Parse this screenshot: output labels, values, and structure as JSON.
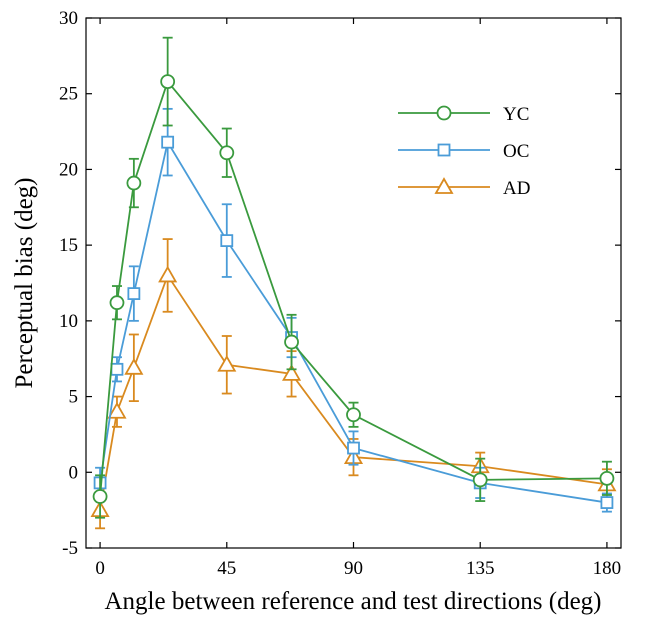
{
  "chart_data": {
    "type": "line",
    "xlabel": "Angle between reference and test directions (deg)",
    "ylabel": "Perceptual bias (deg)",
    "xlim": [
      -5,
      185
    ],
    "ylim": [
      -5,
      30
    ],
    "xticks": [
      0,
      45,
      90,
      135,
      180
    ],
    "yticks": [
      -5,
      0,
      5,
      10,
      15,
      20,
      25,
      30
    ],
    "grid": false,
    "legend_position": "top-right",
    "x": [
      0,
      6,
      12,
      24,
      45,
      68,
      90,
      135,
      180
    ],
    "series": [
      {
        "name": "YC",
        "color": "#3a9a3e",
        "marker": "circle",
        "values": [
          -1.6,
          11.2,
          19.1,
          25.8,
          21.1,
          8.6,
          3.8,
          -0.5,
          -0.4
        ],
        "errors": [
          1.4,
          1.1,
          1.6,
          2.9,
          1.6,
          1.8,
          0.8,
          1.4,
          1.1
        ]
      },
      {
        "name": "OC",
        "color": "#4a9cd8",
        "marker": "square",
        "values": [
          -0.7,
          6.8,
          11.8,
          21.8,
          15.3,
          8.9,
          1.6,
          -0.7,
          -2.0
        ],
        "errors": [
          1.0,
          0.8,
          1.8,
          2.2,
          2.4,
          1.3,
          1.1,
          1.0,
          0.6
        ]
      },
      {
        "name": "AD",
        "color": "#d98a1f",
        "marker": "triangle",
        "values": [
          -2.5,
          4.0,
          6.9,
          13.0,
          7.1,
          6.5,
          1.0,
          0.4,
          -0.8
        ],
        "errors": [
          1.2,
          1.0,
          2.2,
          2.4,
          1.9,
          1.5,
          1.2,
          0.9,
          1.0
        ]
      }
    ]
  }
}
